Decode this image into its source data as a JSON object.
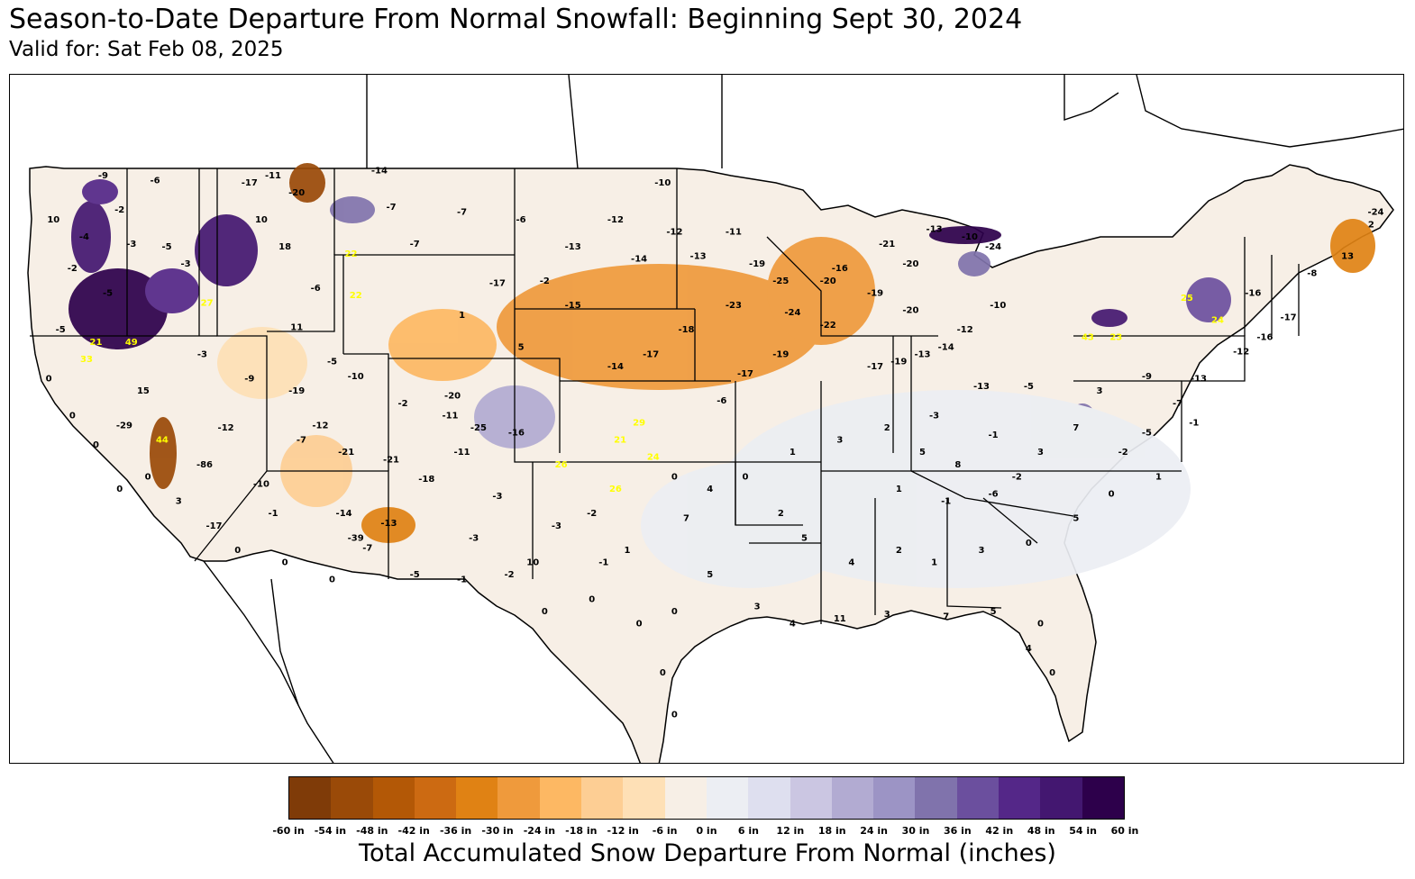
{
  "title": "Season-to-Date Departure From Normal Snowfall: Beginning Sept 30, 2024",
  "valid": "Valid for: Sat Feb 08, 2025",
  "legend": {
    "label": "Total Accumulated Snow Departure From Normal (inches)",
    "colors": [
      "#7f3b08",
      "#9a4a08",
      "#b35806",
      "#cc6a12",
      "#e08214",
      "#ef9a3c",
      "#fdb863",
      "#fdce94",
      "#fee0b6",
      "#f7efe6",
      "#eceef3",
      "#dedfef",
      "#cbc6e2",
      "#b2abd2",
      "#9c94c5",
      "#8073ac",
      "#6b4f9e",
      "#542788",
      "#431770",
      "#2d004b"
    ],
    "ticks": [
      "-60 in",
      "-54 in",
      "-48 in",
      "-42 in",
      "-36 in",
      "-30 in",
      "-24 in",
      "-18 in",
      "-12 in",
      "-6 in",
      "0 in",
      "6 in",
      "12 in",
      "18 in",
      "24 in",
      "30 in",
      "36 in",
      "42 in",
      "48 in",
      "54 in",
      "60 in"
    ]
  },
  "stations": [
    {
      "lon": -123.8,
      "lat": 47.0,
      "v": "10"
    },
    {
      "lon": -121.7,
      "lat": 48.8,
      "v": "-9"
    },
    {
      "lon": -119.5,
      "lat": 48.6,
      "v": "-6"
    },
    {
      "lon": -121.0,
      "lat": 47.4,
      "v": "-2"
    },
    {
      "lon": -122.5,
      "lat": 46.3,
      "v": "-4"
    },
    {
      "lon": -120.5,
      "lat": 46.0,
      "v": "-3"
    },
    {
      "lon": -119.0,
      "lat": 45.9,
      "v": "-5"
    },
    {
      "lon": -118.2,
      "lat": 45.2,
      "v": "-3"
    },
    {
      "lon": -123.0,
      "lat": 45.0,
      "v": "-2"
    },
    {
      "lon": -121.5,
      "lat": 44.0,
      "v": "-5"
    },
    {
      "lon": -117.3,
      "lat": 43.6,
      "v": "27"
    },
    {
      "lon": -123.5,
      "lat": 42.5,
      "v": "-5"
    },
    {
      "lon": -122.0,
      "lat": 42.0,
      "v": "21"
    },
    {
      "lon": -120.5,
      "lat": 42.0,
      "v": "49"
    },
    {
      "lon": -122.4,
      "lat": 41.3,
      "v": "33"
    },
    {
      "lon": -120.0,
      "lat": 40.0,
      "v": "15"
    },
    {
      "lon": -120.8,
      "lat": 38.6,
      "v": "-29"
    },
    {
      "lon": -119.2,
      "lat": 38.0,
      "v": "44"
    },
    {
      "lon": -117.4,
      "lat": 37.0,
      "v": "-86"
    },
    {
      "lon": -115.5,
      "lat": 48.5,
      "v": "-17"
    },
    {
      "lon": -114.5,
      "lat": 48.8,
      "v": "-11"
    },
    {
      "lon": -113.5,
      "lat": 48.1,
      "v": "-20"
    },
    {
      "lon": -115.0,
      "lat": 47.0,
      "v": "10"
    },
    {
      "lon": -114.0,
      "lat": 45.9,
      "v": "18"
    },
    {
      "lon": -111.2,
      "lat": 45.6,
      "v": "22"
    },
    {
      "lon": -112.7,
      "lat": 44.2,
      "v": "-6"
    },
    {
      "lon": -111.0,
      "lat": 43.9,
      "v": "22"
    },
    {
      "lon": -113.5,
      "lat": 42.6,
      "v": "11"
    },
    {
      "lon": -110.0,
      "lat": 49.0,
      "v": "-14"
    },
    {
      "lon": -109.5,
      "lat": 47.5,
      "v": "-7"
    },
    {
      "lon": -108.5,
      "lat": 46.0,
      "v": "-7"
    },
    {
      "lon": -106.5,
      "lat": 47.3,
      "v": "-7"
    },
    {
      "lon": -104.0,
      "lat": 47.0,
      "v": "-6"
    },
    {
      "lon": -105.0,
      "lat": 44.4,
      "v": "-17"
    },
    {
      "lon": -103.0,
      "lat": 44.5,
      "v": "-2"
    },
    {
      "lon": -101.8,
      "lat": 43.5,
      "v": "-15"
    },
    {
      "lon": -106.5,
      "lat": 43.1,
      "v": "1"
    },
    {
      "lon": -104.0,
      "lat": 41.8,
      "v": "5"
    },
    {
      "lon": -112.0,
      "lat": 41.2,
      "v": "-5"
    },
    {
      "lon": -111.0,
      "lat": 40.6,
      "v": "-10"
    },
    {
      "lon": -109.0,
      "lat": 39.5,
      "v": "-2"
    },
    {
      "lon": -106.9,
      "lat": 39.8,
      "v": "-20"
    },
    {
      "lon": -107.0,
      "lat": 39.0,
      "v": "-11"
    },
    {
      "lon": -105.8,
      "lat": 38.5,
      "v": "-25"
    },
    {
      "lon": -104.2,
      "lat": 38.3,
      "v": "-16"
    },
    {
      "lon": -106.5,
      "lat": 37.5,
      "v": "-11"
    },
    {
      "lon": -108.0,
      "lat": 36.4,
      "v": "-18"
    },
    {
      "lon": -105.0,
      "lat": 35.7,
      "v": "-3"
    },
    {
      "lon": -112.5,
      "lat": 38.6,
      "v": "-12"
    },
    {
      "lon": -113.3,
      "lat": 38.0,
      "v": "-7"
    },
    {
      "lon": -111.4,
      "lat": 37.5,
      "v": "-21"
    },
    {
      "lon": -109.5,
      "lat": 37.2,
      "v": "-21"
    },
    {
      "lon": -111.5,
      "lat": 35.0,
      "v": "-14"
    },
    {
      "lon": -111.0,
      "lat": 34.0,
      "v": "-39"
    },
    {
      "lon": -109.6,
      "lat": 34.6,
      "v": "-13"
    },
    {
      "lon": -110.5,
      "lat": 33.6,
      "v": "-7"
    },
    {
      "lon": -106.0,
      "lat": 34.0,
      "v": "-3"
    },
    {
      "lon": -103.5,
      "lat": 33.0,
      "v": "10"
    },
    {
      "lon": -102.3,
      "lat": 37.0,
      "v": "26"
    },
    {
      "lon": -99.0,
      "lat": 38.7,
      "v": "29"
    },
    {
      "lon": -99.8,
      "lat": 38.0,
      "v": "21"
    },
    {
      "lon": -98.4,
      "lat": 37.3,
      "v": "24"
    },
    {
      "lon": -100.0,
      "lat": 36.0,
      "v": "26"
    },
    {
      "lon": -98.0,
      "lat": 48.5,
      "v": "-10"
    },
    {
      "lon": -100.0,
      "lat": 47.0,
      "v": "-12"
    },
    {
      "lon": -97.5,
      "lat": 46.5,
      "v": "-12"
    },
    {
      "lon": -101.8,
      "lat": 45.9,
      "v": "-13"
    },
    {
      "lon": -99.0,
      "lat": 45.4,
      "v": "-14"
    },
    {
      "lon": -96.5,
      "lat": 45.5,
      "v": "-13"
    },
    {
      "lon": -95.0,
      "lat": 46.5,
      "v": "-11"
    },
    {
      "lon": -94.0,
      "lat": 45.2,
      "v": "-19"
    },
    {
      "lon": -93.0,
      "lat": 44.5,
      "v": "-25"
    },
    {
      "lon": -91.0,
      "lat": 44.5,
      "v": "-20"
    },
    {
      "lon": -88.5,
      "lat": 46.0,
      "v": "-21"
    },
    {
      "lon": -87.5,
      "lat": 45.2,
      "v": "-20"
    },
    {
      "lon": -90.5,
      "lat": 45.0,
      "v": "-16"
    },
    {
      "lon": -89.0,
      "lat": 44.0,
      "v": "-19"
    },
    {
      "lon": -87.5,
      "lat": 43.3,
      "v": "-20"
    },
    {
      "lon": -86.5,
      "lat": 46.6,
      "v": "-13"
    },
    {
      "lon": -85.0,
      "lat": 46.3,
      "v": "-10"
    },
    {
      "lon": -84.0,
      "lat": 45.9,
      "v": "-24"
    },
    {
      "lon": -83.8,
      "lat": 43.5,
      "v": "-10"
    },
    {
      "lon": -85.2,
      "lat": 42.5,
      "v": "-12"
    },
    {
      "lon": -86.0,
      "lat": 41.8,
      "v": "-14"
    },
    {
      "lon": -87.0,
      "lat": 41.5,
      "v": "-13"
    },
    {
      "lon": -88.0,
      "lat": 41.2,
      "v": "-19"
    },
    {
      "lon": -89.0,
      "lat": 41.0,
      "v": "-17"
    },
    {
      "lon": -91.0,
      "lat": 42.7,
      "v": "-22"
    },
    {
      "lon": -92.5,
      "lat": 43.2,
      "v": "-24"
    },
    {
      "lon": -95.0,
      "lat": 43.5,
      "v": "-23"
    },
    {
      "lon": -97.0,
      "lat": 42.5,
      "v": "-18"
    },
    {
      "lon": -98.5,
      "lat": 41.5,
      "v": "-17"
    },
    {
      "lon": -100.0,
      "lat": 41.0,
      "v": "-14"
    },
    {
      "lon": -93.0,
      "lat": 41.5,
      "v": "-19"
    },
    {
      "lon": -94.5,
      "lat": 40.7,
      "v": "-17"
    },
    {
      "lon": -95.5,
      "lat": 39.6,
      "v": "-6"
    },
    {
      "lon": -84.5,
      "lat": 40.2,
      "v": "-13"
    },
    {
      "lon": -82.5,
      "lat": 40.2,
      "v": "-5"
    },
    {
      "lon": -80.0,
      "lat": 42.2,
      "v": "43"
    },
    {
      "lon": -78.8,
      "lat": 42.2,
      "v": "23"
    },
    {
      "lon": -75.8,
      "lat": 43.8,
      "v": "25"
    },
    {
      "lon": -74.5,
      "lat": 42.9,
      "v": "24"
    },
    {
      "lon": -73.0,
      "lat": 44.0,
      "v": "-16"
    },
    {
      "lon": -70.5,
      "lat": 44.8,
      "v": "-8"
    },
    {
      "lon": -69.0,
      "lat": 45.5,
      "v": "13"
    },
    {
      "lon": -68.0,
      "lat": 46.8,
      "v": "2"
    },
    {
      "lon": -67.8,
      "lat": 47.3,
      "v": "-24"
    },
    {
      "lon": -71.5,
      "lat": 43.0,
      "v": "-17"
    },
    {
      "lon": -72.5,
      "lat": 42.2,
      "v": "-16"
    },
    {
      "lon": -73.5,
      "lat": 41.6,
      "v": "-12"
    },
    {
      "lon": -75.3,
      "lat": 40.5,
      "v": "-13"
    },
    {
      "lon": -77.5,
      "lat": 40.6,
      "v": "-9"
    },
    {
      "lon": -79.5,
      "lat": 40.0,
      "v": "3"
    },
    {
      "lon": -80.5,
      "lat": 38.5,
      "v": "7"
    },
    {
      "lon": -82.0,
      "lat": 37.5,
      "v": "3"
    },
    {
      "lon": -84.0,
      "lat": 38.2,
      "v": "-1"
    },
    {
      "lon": -86.5,
      "lat": 39.0,
      "v": "-3"
    },
    {
      "lon": -88.5,
      "lat": 38.5,
      "v": "2"
    },
    {
      "lon": -90.5,
      "lat": 38.0,
      "v": "3"
    },
    {
      "lon": -92.5,
      "lat": 37.5,
      "v": "1"
    },
    {
      "lon": -94.5,
      "lat": 36.5,
      "v": "0"
    },
    {
      "lon": -93.0,
      "lat": 35.0,
      "v": "2"
    },
    {
      "lon": -92.0,
      "lat": 34.0,
      "v": "5"
    },
    {
      "lon": -90.0,
      "lat": 33.0,
      "v": "4"
    },
    {
      "lon": -88.0,
      "lat": 33.5,
      "v": "2"
    },
    {
      "lon": -86.5,
      "lat": 33.0,
      "v": "1"
    },
    {
      "lon": -84.5,
      "lat": 33.5,
      "v": "3"
    },
    {
      "lon": -82.5,
      "lat": 33.8,
      "v": "0"
    },
    {
      "lon": -80.5,
      "lat": 34.8,
      "v": "5"
    },
    {
      "lon": -79.0,
      "lat": 35.8,
      "v": "0"
    },
    {
      "lon": -77.0,
      "lat": 36.5,
      "v": "1"
    },
    {
      "lon": -78.5,
      "lat": 37.5,
      "v": "-2"
    },
    {
      "lon": -77.5,
      "lat": 38.3,
      "v": "-5"
    },
    {
      "lon": -76.2,
      "lat": 39.5,
      "v": "-7"
    },
    {
      "lon": -75.5,
      "lat": 38.7,
      "v": "-1"
    },
    {
      "lon": -84.0,
      "lat": 31.0,
      "v": "5"
    },
    {
      "lon": -82.0,
      "lat": 30.5,
      "v": "0"
    },
    {
      "lon": -81.5,
      "lat": 28.5,
      "v": "0"
    },
    {
      "lon": -82.5,
      "lat": 29.5,
      "v": "4"
    },
    {
      "lon": -86.0,
      "lat": 30.8,
      "v": "7"
    },
    {
      "lon": -88.5,
      "lat": 30.9,
      "v": "3"
    },
    {
      "lon": -90.5,
      "lat": 30.7,
      "v": "11"
    },
    {
      "lon": -92.5,
      "lat": 30.5,
      "v": "4"
    },
    {
      "lon": -94.0,
      "lat": 31.2,
      "v": "3"
    },
    {
      "lon": -96.0,
      "lat": 32.5,
      "v": "5"
    },
    {
      "lon": -97.5,
      "lat": 31.0,
      "v": "0"
    },
    {
      "lon": -99.0,
      "lat": 30.5,
      "v": "0"
    },
    {
      "lon": -101.0,
      "lat": 31.5,
      "v": "0"
    },
    {
      "lon": -103.0,
      "lat": 31.0,
      "v": "0"
    },
    {
      "lon": -98.0,
      "lat": 28.5,
      "v": "0"
    },
    {
      "lon": -97.5,
      "lat": 26.8,
      "v": "0"
    },
    {
      "lon": -99.5,
      "lat": 33.5,
      "v": "1"
    },
    {
      "lon": -97.0,
      "lat": 34.8,
      "v": "7"
    },
    {
      "lon": -96.0,
      "lat": 36.0,
      "v": "4"
    },
    {
      "lon": -97.5,
      "lat": 36.5,
      "v": "0"
    },
    {
      "lon": -101.0,
      "lat": 35.0,
      "v": "-2"
    },
    {
      "lon": -102.5,
      "lat": 34.5,
      "v": "-3"
    },
    {
      "lon": -100.5,
      "lat": 33.0,
      "v": "-1"
    },
    {
      "lon": -104.5,
      "lat": 32.5,
      "v": "-2"
    },
    {
      "lon": -106.5,
      "lat": 32.3,
      "v": "-1"
    },
    {
      "lon": -108.5,
      "lat": 32.5,
      "v": "-5"
    },
    {
      "lon": -112.0,
      "lat": 32.3,
      "v": "0"
    },
    {
      "lon": -114.0,
      "lat": 33.0,
      "v": "0"
    },
    {
      "lon": -116.0,
      "lat": 33.5,
      "v": "0"
    },
    {
      "lon": -117.0,
      "lat": 34.5,
      "v": "-17"
    },
    {
      "lon": -118.5,
      "lat": 35.5,
      "v": "3"
    },
    {
      "lon": -119.8,
      "lat": 36.5,
      "v": "0"
    },
    {
      "lon": -121.0,
      "lat": 36.0,
      "v": "0"
    },
    {
      "lon": -122.0,
      "lat": 37.8,
      "v": "0"
    },
    {
      "lon": -123.0,
      "lat": 39.0,
      "v": "0"
    },
    {
      "lon": -124.0,
      "lat": 40.5,
      "v": "0"
    },
    {
      "lon": -115.0,
      "lat": 36.2,
      "v": "-10"
    },
    {
      "lon": -114.5,
      "lat": 35.0,
      "v": "-1"
    },
    {
      "lon": -116.5,
      "lat": 38.5,
      "v": "-12"
    },
    {
      "lon": -115.5,
      "lat": 40.5,
      "v": "-9"
    },
    {
      "lon": -117.5,
      "lat": 41.5,
      "v": "-3"
    },
    {
      "lon": -113.5,
      "lat": 40.0,
      "v": "-19"
    },
    {
      "lon": -88.0,
      "lat": 36.0,
      "v": "1"
    },
    {
      "lon": -86.0,
      "lat": 35.5,
      "v": "-1"
    },
    {
      "lon": -84.0,
      "lat": 35.8,
      "v": "-6"
    },
    {
      "lon": -83.0,
      "lat": 36.5,
      "v": "-2"
    },
    {
      "lon": -85.5,
      "lat": 37.0,
      "v": "8"
    },
    {
      "lon": -87.0,
      "lat": 37.5,
      "v": "5"
    }
  ]
}
